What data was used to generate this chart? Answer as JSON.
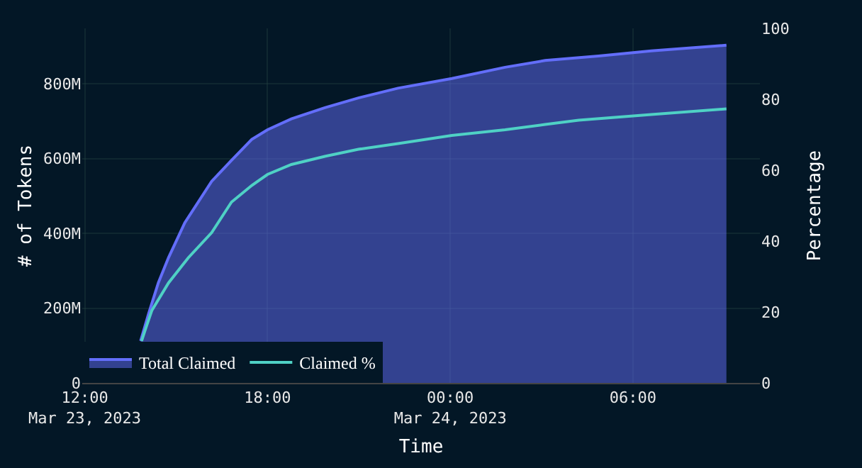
{
  "chart_data": {
    "type": "area",
    "xlabel": "Time",
    "ylabel": "# of Tokens",
    "y2label": "Percentage",
    "xlim": [
      "2023-03-23T11:55",
      "2023-03-24T10:10"
    ],
    "xticks": [
      {
        "value": "2023-03-23T12:00",
        "label": "12:00\nMar 23, 2023"
      },
      {
        "value": "2023-03-23T18:00",
        "label": "18:00"
      },
      {
        "value": "2023-03-24T00:00",
        "label": "00:00\nMar 24, 2023"
      },
      {
        "value": "2023-03-24T06:00",
        "label": "06:00"
      }
    ],
    "ylim": [
      0,
      948000000
    ],
    "yticks": [
      {
        "value": 0,
        "label": "0"
      },
      {
        "value": 200000000,
        "label": "200M"
      },
      {
        "value": 400000000,
        "label": "400M"
      },
      {
        "value": 600000000,
        "label": "600M"
      },
      {
        "value": 800000000,
        "label": "800M"
      }
    ],
    "y2lim": [
      0,
      100
    ],
    "y2ticks": [
      0,
      20,
      40,
      60,
      80,
      100
    ],
    "grid": true,
    "legend": "bottom left",
    "series": [
      {
        "name": "Total Claimed",
        "color": "#636efa",
        "x": [
          "2023-03-23T13:50",
          "2023-03-23T14:06",
          "2023-03-23T14:25",
          "2023-03-23T14:45",
          "2023-03-23T15:17",
          "2023-03-23T16:10",
          "2023-03-23T16:49",
          "2023-03-23T17:29",
          "2023-03-23T18:00",
          "2023-03-23T18:47",
          "2023-03-23T19:53",
          "2023-03-23T20:59",
          "2023-03-23T22:17",
          "2023-03-24T00:03",
          "2023-03-24T01:48",
          "2023-03-24T03:07",
          "2023-03-24T04:52",
          "2023-03-24T06:36",
          "2023-03-24T09:04"
        ],
        "values": [
          112000000,
          186000000,
          268000000,
          335000000,
          428000000,
          539000000,
          595000000,
          651000000,
          677000000,
          706000000,
          736000000,
          762000000,
          788000000,
          814000000,
          844000000,
          862000000,
          874000000,
          888000000,
          903000000
        ]
      },
      {
        "name": "Claimed %",
        "type": "line",
        "axis": "y2",
        "color": "#4fd1c5",
        "x": [
          "2023-03-23T13:52",
          "2023-03-23T13:59",
          "2023-03-23T14:12",
          "2023-03-23T14:45",
          "2023-03-23T15:24",
          "2023-03-23T16:10",
          "2023-03-23T16:49",
          "2023-03-23T17:29",
          "2023-03-23T18:00",
          "2023-03-23T18:47",
          "2023-03-23T19:53",
          "2023-03-23T20:59",
          "2023-03-23T22:17",
          "2023-03-24T00:03",
          "2023-03-24T01:48",
          "2023-03-24T03:07",
          "2023-03-24T04:13",
          "2023-03-24T06:36",
          "2023-03-24T09:04"
        ],
        "values": [
          11.8,
          14.9,
          20.4,
          28.2,
          35.3,
          42.4,
          51,
          55.7,
          58.8,
          61.6,
          63.9,
          65.9,
          67.5,
          69.8,
          71.4,
          72.9,
          74.1,
          75.7,
          77.3
        ]
      }
    ]
  }
}
